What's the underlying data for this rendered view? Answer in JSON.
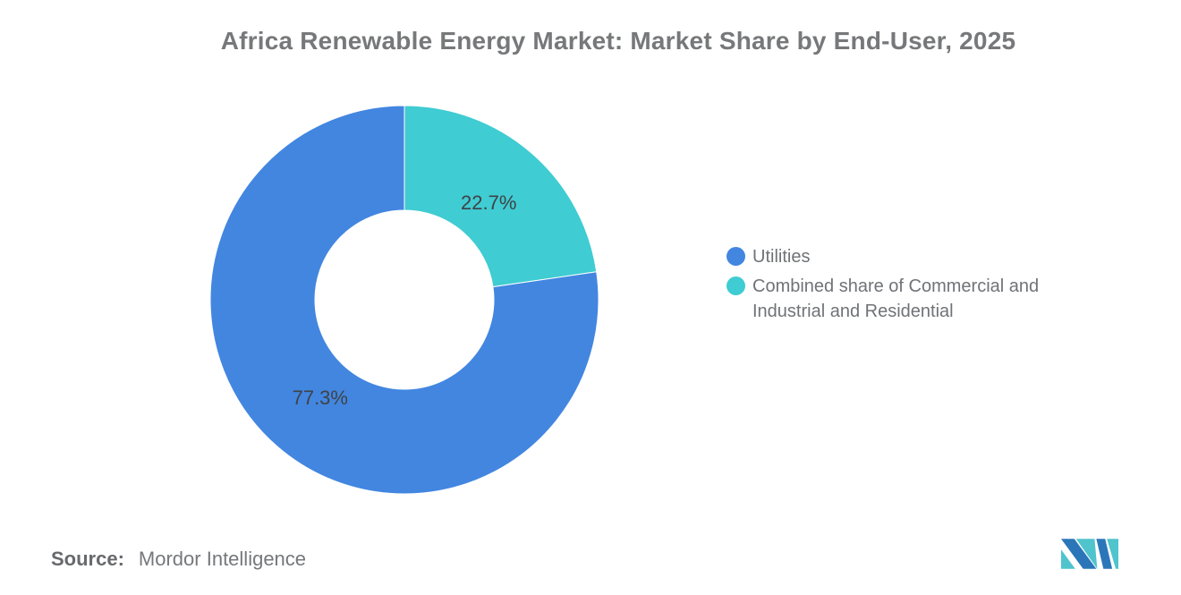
{
  "title": "Africa Renewable Energy Market: Market Share by End-User, 2025",
  "chart_data": {
    "type": "pie",
    "donut": true,
    "title": "Africa Renewable Energy Market: Market Share by End-User, 2025",
    "labels": [
      "Combined share of Commercial and Industrial and Residential",
      "Utilities"
    ],
    "values": [
      22.7,
      77.3
    ],
    "slice_label_texts": [
      "22.7%",
      "77.3%"
    ],
    "colors": [
      "#3FCCD2",
      "#4286E0"
    ],
    "start_angle_deg": 0,
    "direction": "clockwise",
    "inner_radius_ratio": 0.46,
    "legend_position": "right",
    "background": "#FFFFFF"
  },
  "legend": {
    "items": [
      {
        "label": "Utilities",
        "color": "#4286E0"
      },
      {
        "label": "Combined share of Commercial and Industrial and Residential",
        "color": "#3FCCD2"
      }
    ]
  },
  "source": {
    "label": "Source:",
    "value": "Mordor Intelligence"
  },
  "logo": {
    "name": "Mordor Intelligence logo",
    "blue": "#2B76B9",
    "teal": "#4FC4CD"
  },
  "colors": {
    "title_text": "#77787A",
    "slice_label_text": "#3F4347",
    "legend_text": "#6F7377",
    "source_text": "#75787B",
    "background": "#FFFFFF"
  }
}
